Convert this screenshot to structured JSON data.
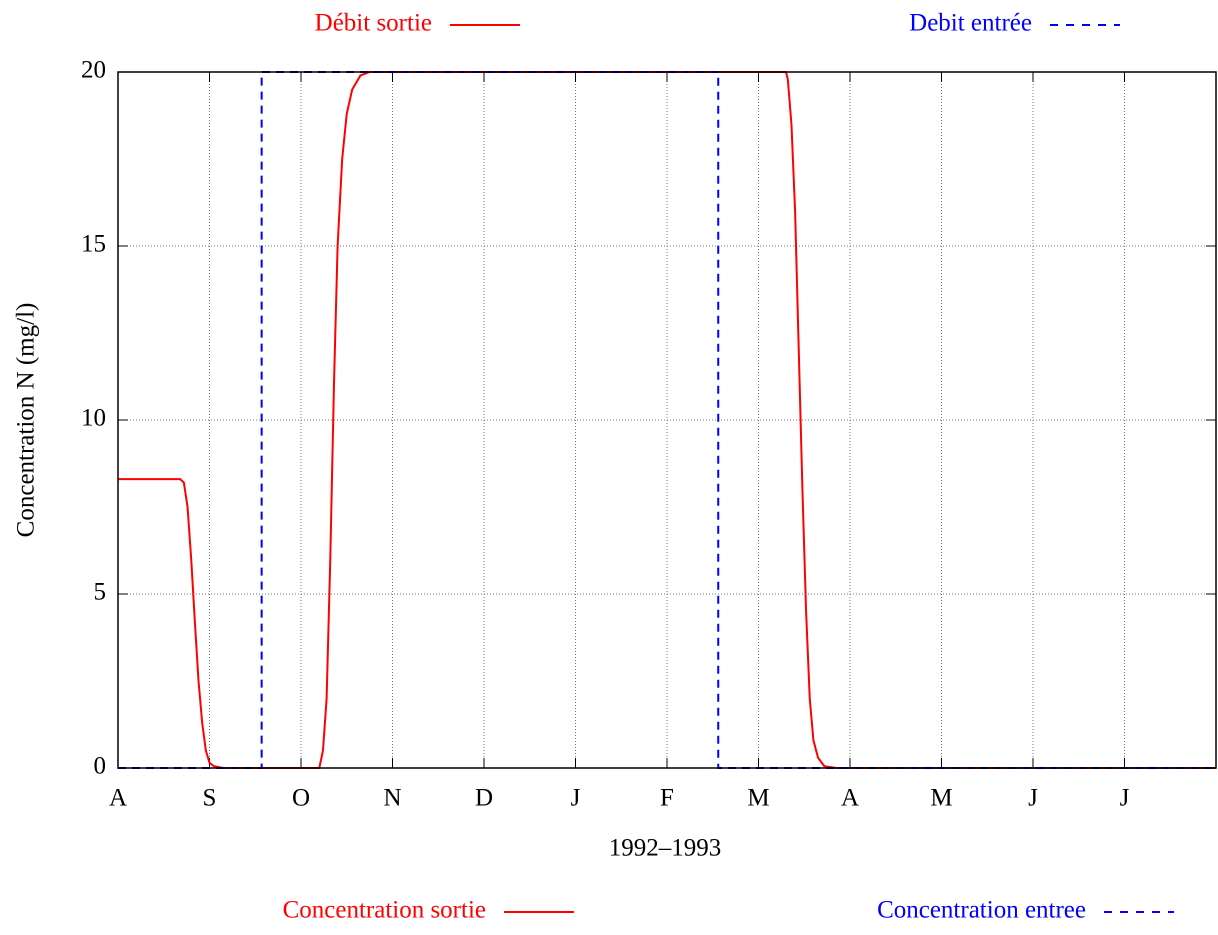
{
  "chart_data": {
    "type": "line",
    "x_label": "1992–1993",
    "y_label": "Concentration N (mg/l)",
    "xlim": [
      0,
      12
    ],
    "ylim": [
      0,
      20
    ],
    "xticks": [
      {
        "value": 0,
        "label": "A"
      },
      {
        "value": 1,
        "label": "S"
      },
      {
        "value": 2,
        "label": "O"
      },
      {
        "value": 3,
        "label": "N"
      },
      {
        "value": 4,
        "label": "D"
      },
      {
        "value": 5,
        "label": "J"
      },
      {
        "value": 6,
        "label": "F"
      },
      {
        "value": 7,
        "label": "M"
      },
      {
        "value": 8,
        "label": "A"
      },
      {
        "value": 9,
        "label": "M"
      },
      {
        "value": 10,
        "label": "J"
      },
      {
        "value": 11,
        "label": "J"
      }
    ],
    "yticks": [
      0,
      5,
      10,
      15,
      20
    ],
    "grid": true,
    "top_legend": [
      {
        "name": "Débit sortie",
        "color": "#ff0000",
        "dash": false
      },
      {
        "name": "Debit entrée",
        "color": "#0000ff",
        "dash": true
      }
    ],
    "series": [
      {
        "name": "Concentration sortie",
        "color": "#ff0000",
        "dash": false,
        "x": [
          0,
          0.68,
          0.72,
          0.76,
          0.8,
          0.84,
          0.88,
          0.92,
          0.96,
          1.0,
          1.05,
          1.15,
          2.2,
          2.24,
          2.28,
          2.32,
          2.36,
          2.4,
          2.45,
          2.5,
          2.56,
          2.65,
          2.75,
          7.3,
          7.32,
          7.36,
          7.4,
          7.44,
          7.48,
          7.52,
          7.56,
          7.6,
          7.65,
          7.72,
          7.85,
          12
        ],
        "values": [
          8.3,
          8.3,
          8.2,
          7.5,
          6,
          4.2,
          2.5,
          1.3,
          0.5,
          0.15,
          0.05,
          0,
          0,
          0.5,
          2,
          6,
          11,
          15,
          17.5,
          18.8,
          19.5,
          19.9,
          20,
          20,
          19.8,
          18.5,
          16,
          12,
          8,
          4.5,
          2,
          0.8,
          0.3,
          0.05,
          0,
          0
        ]
      },
      {
        "name": "Concentration entree",
        "color": "#0000ff",
        "dash": true,
        "x": [
          0,
          1.57,
          1.57,
          6.56,
          6.56,
          12
        ],
        "values": [
          0,
          0,
          20,
          20,
          0,
          0
        ]
      }
    ]
  }
}
